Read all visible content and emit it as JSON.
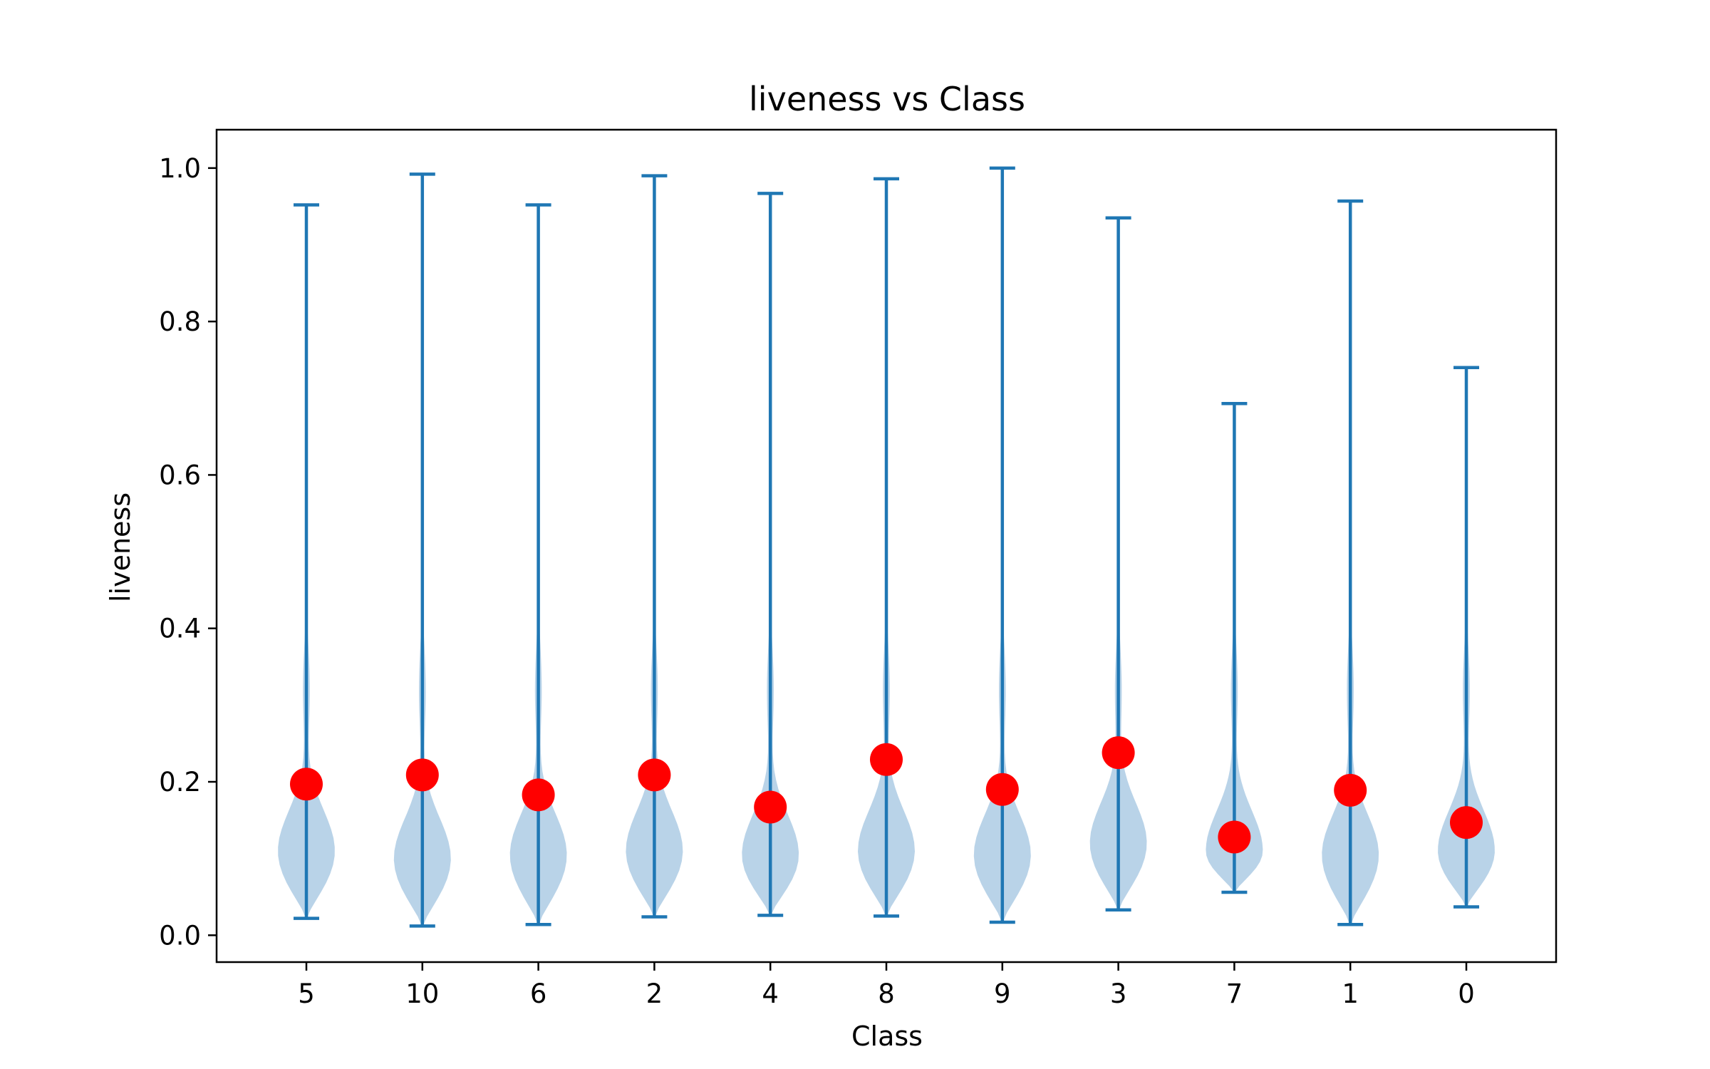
{
  "chart_data": {
    "type": "violin",
    "title": "liveness vs Class",
    "xlabel": "Class",
    "ylabel": "liveness",
    "ylim": [
      -0.035,
      1.05
    ],
    "yticks": [
      0.0,
      0.2,
      0.4,
      0.6,
      0.8,
      1.0
    ],
    "ytick_labels": [
      "0.0",
      "0.2",
      "0.4",
      "0.6",
      "0.8",
      "1.0"
    ],
    "grid": false,
    "categories": [
      "5",
      "10",
      "6",
      "2",
      "4",
      "8",
      "9",
      "3",
      "7",
      "1",
      "0"
    ],
    "series": [
      {
        "min": [
          0.022,
          0.012,
          0.014,
          0.024,
          0.026,
          0.025,
          0.017,
          0.033,
          0.056,
          0.014,
          0.037
        ],
        "max": [
          0.952,
          0.992,
          0.952,
          0.99,
          0.967,
          0.986,
          1.0,
          0.935,
          0.693,
          0.957,
          0.74
        ],
        "mean": [
          0.197,
          0.209,
          0.183,
          0.209,
          0.167,
          0.229,
          0.19,
          0.238,
          0.128,
          0.189,
          0.147
        ],
        "density_peak": [
          0.11,
          0.1,
          0.105,
          0.11,
          0.105,
          0.11,
          0.105,
          0.12,
          0.11,
          0.105,
          0.11
        ]
      }
    ],
    "colors": {
      "body": "#1f77b4",
      "body_fill": "#b9d3e8",
      "mean_marker": "#ff0000",
      "axes": "#000000"
    }
  }
}
